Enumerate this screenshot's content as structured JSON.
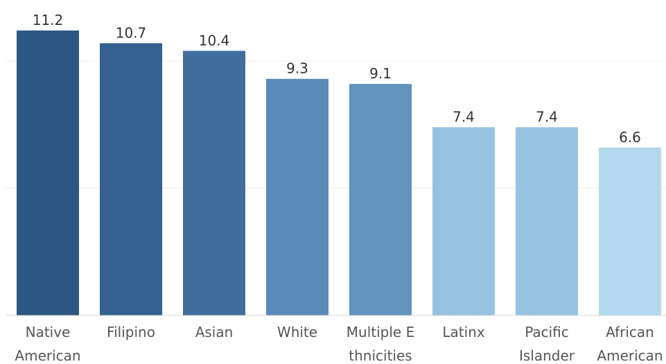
{
  "chart_data": {
    "type": "bar",
    "title": "",
    "xlabel": "",
    "ylabel": "",
    "categories": [
      [
        "Native",
        "American"
      ],
      [
        "Filipino"
      ],
      [
        "Asian"
      ],
      [
        "White"
      ],
      [
        "Multiple E",
        "thnicities"
      ],
      [
        "Latinx"
      ],
      [
        "Pacific",
        "Islander"
      ],
      [
        "African",
        "American"
      ]
    ],
    "values": [
      11.2,
      10.7,
      10.4,
      9.3,
      9.1,
      7.4,
      7.4,
      6.6
    ],
    "value_labels": [
      "11.2",
      "10.7",
      "10.4",
      "9.3",
      "9.1",
      "7.4",
      "7.4",
      "6.6"
    ],
    "colors": [
      "#2c5782",
      "#34618f",
      "#416d9e",
      "#5a8ab8",
      "#6193bd",
      "#97c3e3",
      "#97c3e3",
      "#b3d8ee"
    ],
    "ylim": [
      0,
      11.2
    ],
    "gridlines": [
      5,
      10
    ],
    "grid": true
  }
}
